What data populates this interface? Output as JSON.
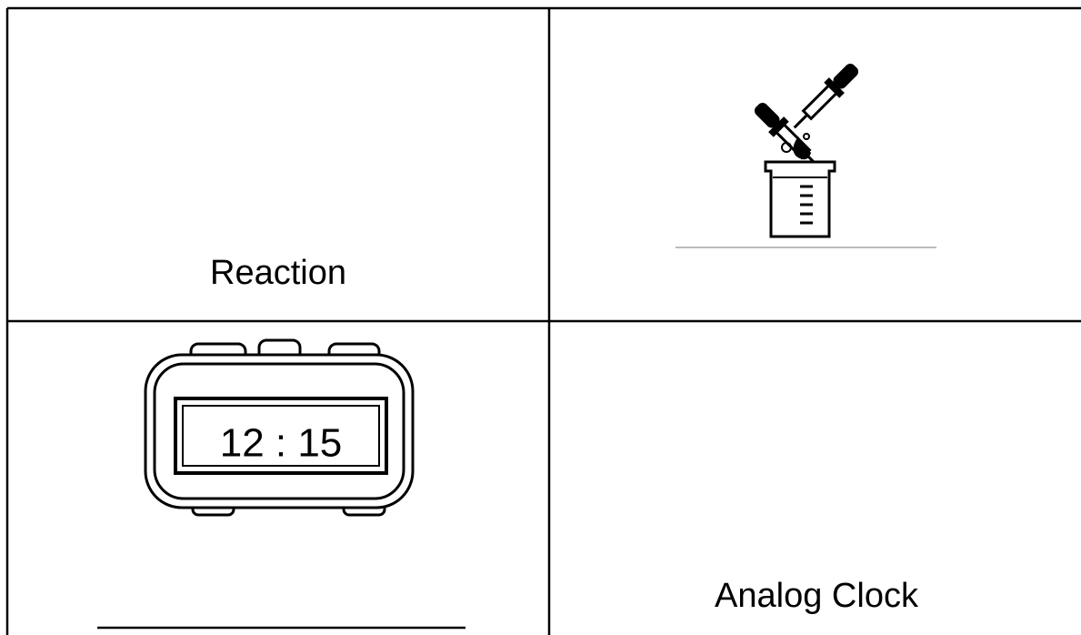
{
  "table": {
    "row_1": {
      "left": "Reaction"
    },
    "row_2": {
      "left_clock_display": "12 : 15",
      "right": "Analog Clock"
    }
  }
}
